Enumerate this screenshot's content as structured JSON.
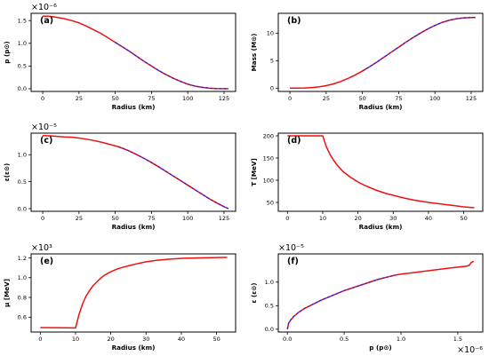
{
  "colors": {
    "primary": "#ee1111",
    "secondary": "#3322dd",
    "axis": "#000000"
  },
  "chart_data": [
    {
      "type": "line",
      "panel": "(a)",
      "xlabel": "Radius (km)",
      "ylabel": "p (p⊙)",
      "multiplier": "×10⁻⁶",
      "xlim": [
        -8,
        133
      ],
      "ylim": [
        -0.06,
        1.66
      ],
      "xticks": [
        0,
        25,
        50,
        75,
        100,
        125
      ],
      "xtick_labels": [
        "0",
        "25",
        "50",
        "75",
        "100",
        "125"
      ],
      "yticks": [
        0,
        0.5,
        1.0,
        1.5
      ],
      "ytick_labels": [
        "0.0",
        "0.5",
        "1.0",
        "1.5"
      ],
      "series": [
        {
          "color": "red",
          "style": "solid",
          "x": [
            0,
            5,
            10,
            15,
            20,
            25,
            30,
            35,
            40,
            45,
            50,
            55,
            60,
            65,
            70,
            75,
            80,
            85,
            90,
            95,
            100,
            105,
            110,
            115,
            120,
            125,
            128
          ],
          "y": [
            1.6,
            1.595,
            1.57,
            1.54,
            1.5,
            1.45,
            1.38,
            1.3,
            1.22,
            1.12,
            1.02,
            0.92,
            0.82,
            0.71,
            0.6,
            0.5,
            0.4,
            0.31,
            0.23,
            0.16,
            0.1,
            0.058,
            0.03,
            0.012,
            0.004,
            0.0005,
            0.0
          ]
        },
        {
          "color": "blue",
          "style": "dashed",
          "x": [
            50,
            55,
            60,
            65,
            70,
            75,
            80,
            85,
            90,
            95,
            100,
            105,
            110,
            115,
            120,
            125,
            128
          ],
          "y": [
            1.02,
            0.92,
            0.82,
            0.71,
            0.6,
            0.5,
            0.4,
            0.31,
            0.23,
            0.16,
            0.1,
            0.058,
            0.03,
            0.012,
            0.004,
            0.0005,
            0.0
          ]
        }
      ]
    },
    {
      "type": "line",
      "panel": "(b)",
      "xlabel": "Radius (km)",
      "ylabel": "Mass (M⊙)",
      "multiplier": "",
      "xlim": [
        -8,
        133
      ],
      "ylim": [
        -0.6,
        13.6
      ],
      "xticks": [
        0,
        25,
        50,
        75,
        100,
        125
      ],
      "xtick_labels": [
        "0",
        "25",
        "50",
        "75",
        "100",
        "125"
      ],
      "yticks": [
        0,
        5,
        10
      ],
      "ytick_labels": [
        "0",
        "5",
        "10"
      ],
      "series": [
        {
          "color": "red",
          "style": "solid",
          "x": [
            0,
            5,
            10,
            15,
            20,
            25,
            30,
            35,
            40,
            45,
            50,
            55,
            60,
            65,
            70,
            75,
            80,
            85,
            90,
            95,
            100,
            105,
            110,
            115,
            120,
            125,
            128
          ],
          "y": [
            0,
            0.005,
            0.03,
            0.1,
            0.23,
            0.45,
            0.77,
            1.2,
            1.75,
            2.4,
            3.1,
            3.9,
            4.75,
            5.65,
            6.55,
            7.45,
            8.35,
            9.2,
            10.0,
            10.75,
            11.4,
            11.95,
            12.35,
            12.62,
            12.78,
            12.84,
            12.85
          ]
        },
        {
          "color": "blue",
          "style": "dashed",
          "x": [
            50,
            55,
            60,
            65,
            70,
            75,
            80,
            85,
            90,
            95,
            100,
            105,
            110,
            115,
            120,
            125,
            128
          ],
          "y": [
            3.1,
            3.9,
            4.75,
            5.65,
            6.55,
            7.45,
            8.35,
            9.2,
            10.0,
            10.75,
            11.4,
            11.95,
            12.35,
            12.62,
            12.78,
            12.84,
            12.85
          ]
        }
      ]
    },
    {
      "type": "line",
      "panel": "(c)",
      "xlabel": "Radius (km)",
      "ylabel": "ε(ε⊙)",
      "multiplier": "×10⁻⁵",
      "xlim": [
        -8,
        133
      ],
      "ylim": [
        -0.05,
        1.4
      ],
      "xticks": [
        0,
        25,
        50,
        75,
        100,
        125
      ],
      "xtick_labels": [
        "0",
        "25",
        "50",
        "75",
        "100",
        "125"
      ],
      "yticks": [
        0,
        0.5,
        1.0
      ],
      "ytick_labels": [
        "0.0",
        "0.5",
        "1.0"
      ],
      "series": [
        {
          "color": "red",
          "style": "solid",
          "x": [
            0,
            5,
            10,
            15,
            20,
            25,
            30,
            35,
            40,
            45,
            50,
            52,
            55,
            60,
            65,
            70,
            75,
            80,
            85,
            90,
            95,
            100,
            105,
            110,
            115,
            120,
            125,
            128
          ],
          "y": [
            1.355,
            1.35,
            1.34,
            1.33,
            1.325,
            1.31,
            1.29,
            1.265,
            1.235,
            1.2,
            1.165,
            1.15,
            1.12,
            1.065,
            1.0,
            0.93,
            0.855,
            0.775,
            0.69,
            0.605,
            0.52,
            0.435,
            0.35,
            0.265,
            0.18,
            0.105,
            0.035,
            0.0
          ]
        },
        {
          "color": "blue",
          "style": "dashed",
          "x": [
            52,
            55,
            60,
            65,
            70,
            75,
            80,
            85,
            90,
            95,
            100,
            105,
            110,
            115,
            120,
            125,
            128
          ],
          "y": [
            1.15,
            1.12,
            1.065,
            1.0,
            0.93,
            0.855,
            0.775,
            0.69,
            0.605,
            0.52,
            0.435,
            0.35,
            0.265,
            0.18,
            0.105,
            0.035,
            0.0
          ]
        }
      ]
    },
    {
      "type": "line",
      "panel": "(d)",
      "xlabel": "Radius (km)",
      "ylabel": "T [MeV]",
      "multiplier": "",
      "xlim": [
        -2.6,
        55.4
      ],
      "ylim": [
        30,
        206
      ],
      "xticks": [
        0,
        10,
        20,
        30,
        40,
        50
      ],
      "xtick_labels": [
        "0",
        "10",
        "20",
        "30",
        "40",
        "50"
      ],
      "yticks": [
        50,
        100,
        150,
        200
      ],
      "ytick_labels": [
        "50",
        "100",
        "150",
        "200"
      ],
      "series": [
        {
          "color": "red",
          "style": "solid",
          "x": [
            0,
            5,
            10,
            11,
            12,
            13,
            14,
            15,
            16,
            18,
            20,
            22,
            25,
            28,
            30,
            33,
            36,
            40,
            43,
            46,
            50,
            53
          ],
          "y": [
            200,
            200,
            200,
            176,
            159,
            146,
            135,
            126,
            118,
            106,
            96,
            88,
            78,
            70,
            66,
            60,
            55,
            50,
            47,
            44,
            40,
            38
          ]
        }
      ]
    },
    {
      "type": "line",
      "panel": "(e)",
      "xlabel": "Radius (km)",
      "ylabel": "μ [MeV]",
      "multiplier": "×10³",
      "xlim": [
        -2.6,
        55.4
      ],
      "ylim": [
        0.45,
        1.24
      ],
      "xticks": [
        0,
        10,
        20,
        30,
        40,
        50
      ],
      "xtick_labels": [
        "0",
        "10",
        "20",
        "30",
        "40",
        "50"
      ],
      "yticks": [
        0.6,
        0.8,
        1.0,
        1.2
      ],
      "ytick_labels": [
        "0.6",
        "0.8",
        "1.0",
        "1.2"
      ],
      "series": [
        {
          "color": "red",
          "style": "solid",
          "x": [
            0,
            5,
            10,
            11,
            12,
            13,
            14,
            15,
            16,
            17,
            18,
            20,
            22,
            25,
            28,
            30,
            33,
            36,
            40,
            45,
            50,
            53
          ],
          "y": [
            0.495,
            0.494,
            0.492,
            0.63,
            0.735,
            0.815,
            0.87,
            0.92,
            0.955,
            0.99,
            1.02,
            1.06,
            1.09,
            1.12,
            1.145,
            1.16,
            1.175,
            1.185,
            1.195,
            1.2,
            1.203,
            1.205
          ]
        }
      ]
    },
    {
      "type": "line",
      "panel": "(f)",
      "xlabel": "p (p⊙)",
      "ylabel": "ε (ε⊙)",
      "multiplier": "×10⁻⁵",
      "x_multiplier": "×10⁻⁶",
      "xlim": [
        -0.08,
        1.72
      ],
      "ylim": [
        -0.06,
        1.6
      ],
      "xticks": [
        0,
        0.5,
        1.0,
        1.5
      ],
      "xtick_labels": [
        "0.0",
        "0.5",
        "1.0",
        "1.5"
      ],
      "yticks": [
        0,
        0.5,
        1.0
      ],
      "ytick_labels": [
        "0.0",
        "0.5",
        "1.0"
      ],
      "series": [
        {
          "color": "red",
          "style": "solid",
          "x": [
            0,
            0.01,
            0.03,
            0.06,
            0.1,
            0.15,
            0.2,
            0.3,
            0.4,
            0.5,
            0.6,
            0.7,
            0.8,
            0.9,
            0.95,
            1.0,
            1.1,
            1.2,
            1.3,
            1.4,
            1.5,
            1.58,
            1.6,
            1.62,
            1.64
          ],
          "y": [
            0.0,
            0.12,
            0.2,
            0.28,
            0.36,
            0.44,
            0.5,
            0.62,
            0.72,
            0.82,
            0.9,
            0.98,
            1.06,
            1.12,
            1.15,
            1.17,
            1.2,
            1.23,
            1.26,
            1.29,
            1.32,
            1.34,
            1.36,
            1.42,
            1.44
          ]
        },
        {
          "color": "blue",
          "style": "dashed",
          "x": [
            0,
            0.01,
            0.03,
            0.06,
            0.1,
            0.15,
            0.2,
            0.3,
            0.4,
            0.5,
            0.6,
            0.7,
            0.8,
            0.9,
            0.95
          ],
          "y": [
            0.0,
            0.12,
            0.2,
            0.28,
            0.36,
            0.44,
            0.5,
            0.62,
            0.72,
            0.82,
            0.9,
            0.98,
            1.06,
            1.12,
            1.15
          ]
        }
      ]
    }
  ]
}
